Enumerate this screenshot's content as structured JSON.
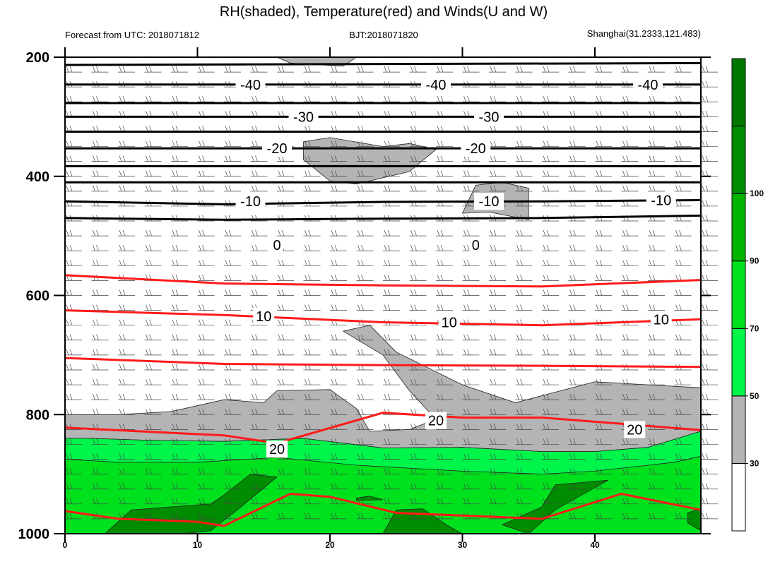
{
  "title": "RH(shaded), Temperature(red) and Winds(U and W)",
  "left_string": "Forecast from UTC: 2018071812",
  "center_string": "BJT:2018071820",
  "right_string": "Shanghai(31.2333,121.483)",
  "chart_data": {
    "type": "heatmap",
    "title": "RH(shaded), Temperature(red) and Winds(U and W)",
    "x_ticks": [
      "0",
      "10",
      "20",
      "30",
      "40"
    ],
    "y_ticks": [
      "200",
      "400",
      "600",
      "800",
      "1000"
    ],
    "xlim": [
      0,
      48
    ],
    "ylim": [
      1000,
      200
    ],
    "colorbar": {
      "levels": [
        "30",
        "50",
        "70",
        "90",
        "100"
      ],
      "colors": [
        "#ffffff",
        "#b4b4b4",
        "#00f54a",
        "#00e11e",
        "#00b400",
        "#008c00",
        "#007800"
      ]
    },
    "temperature_black": [
      {
        "p": 213,
        "values": [
          [
            0,
            213
          ],
          [
            48,
            210
          ]
        ]
      },
      {
        "p": 246,
        "values": [
          [
            0,
            246
          ],
          [
            48,
            246
          ]
        ]
      },
      {
        "p": 277,
        "values": [
          [
            0,
            277
          ],
          [
            48,
            277
          ]
        ]
      },
      {
        "p": 300,
        "values": [
          [
            0,
            300
          ],
          [
            48,
            300
          ]
        ]
      },
      {
        "p": 325,
        "values": [
          [
            0,
            325
          ],
          [
            48,
            325
          ]
        ]
      },
      {
        "p": 353,
        "values": [
          [
            0,
            353
          ],
          [
            48,
            353
          ]
        ]
      },
      {
        "p": 383,
        "values": [
          [
            0,
            383
          ],
          [
            48,
            383
          ]
        ]
      },
      {
        "p": 410,
        "values": [
          [
            0,
            410
          ],
          [
            48,
            410
          ]
        ]
      },
      {
        "p": 440,
        "values": [
          [
            0,
            442
          ],
          [
            12,
            447
          ],
          [
            24,
            443
          ],
          [
            36,
            442
          ],
          [
            48,
            440
          ]
        ]
      },
      {
        "p": 470,
        "values": [
          [
            0,
            470
          ],
          [
            12,
            473
          ],
          [
            24,
            471
          ],
          [
            36,
            470
          ],
          [
            48,
            466
          ]
        ]
      }
    ],
    "temperature_red": [
      {
        "p": 567,
        "values": [
          [
            0,
            566
          ],
          [
            12,
            580
          ],
          [
            24,
            583
          ],
          [
            36,
            585
          ],
          [
            48,
            574
          ]
        ]
      },
      {
        "p": 625,
        "values": [
          [
            0,
            625
          ],
          [
            12,
            633
          ],
          [
            24,
            645
          ],
          [
            36,
            650
          ],
          [
            48,
            640
          ]
        ]
      },
      {
        "p": 705,
        "values": [
          [
            0,
            705
          ],
          [
            12,
            715
          ],
          [
            24,
            717
          ],
          [
            36,
            718
          ],
          [
            48,
            720
          ]
        ]
      },
      {
        "p": 820,
        "values": [
          [
            0,
            822
          ],
          [
            12,
            835
          ],
          [
            16,
            848
          ],
          [
            24,
            797
          ],
          [
            30,
            805
          ],
          [
            36,
            805
          ],
          [
            48,
            826
          ]
        ]
      },
      {
        "p": 960,
        "values": [
          [
            0,
            962
          ],
          [
            4,
            975
          ],
          [
            10,
            980
          ],
          [
            12,
            987
          ],
          [
            17,
            933
          ],
          [
            20,
            938
          ],
          [
            25,
            965
          ],
          [
            36,
            975
          ],
          [
            42,
            933
          ],
          [
            48,
            960
          ]
        ]
      }
    ],
    "temperature_labels": [
      {
        "text": "-40",
        "x": 14,
        "p": 246
      },
      {
        "text": "-40",
        "x": 28,
        "p": 246
      },
      {
        "text": "-40",
        "x": 44,
        "p": 246
      },
      {
        "text": "-30",
        "x": 18,
        "p": 300
      },
      {
        "text": "-30",
        "x": 32,
        "p": 300
      },
      {
        "text": "-20",
        "x": 16,
        "p": 353
      },
      {
        "text": "-20",
        "x": 31,
        "p": 353
      },
      {
        "text": "-10",
        "x": 14,
        "p": 442
      },
      {
        "text": "-10",
        "x": 32,
        "p": 442
      },
      {
        "text": "-10",
        "x": 45,
        "p": 440
      },
      {
        "text": "0",
        "x": 16,
        "p": 515
      },
      {
        "text": "0",
        "x": 31,
        "p": 515
      },
      {
        "text": "10",
        "x": 15,
        "p": 635
      },
      {
        "text": "10",
        "x": 29,
        "p": 645
      },
      {
        "text": "10",
        "x": 45,
        "p": 640
      },
      {
        "text": "20",
        "x": 16,
        "p": 858
      },
      {
        "text": "20",
        "x": 28,
        "p": 810
      },
      {
        "text": "20",
        "x": 43,
        "p": 825
      }
    ],
    "rh_regions": [
      {
        "level": "30-50",
        "polygon": [
          [
            0,
            800
          ],
          [
            4,
            800
          ],
          [
            8,
            795
          ],
          [
            12,
            775
          ],
          [
            15,
            780
          ],
          [
            16,
            760
          ],
          [
            20,
            758
          ],
          [
            22,
            790
          ],
          [
            23,
            828
          ],
          [
            26,
            825
          ],
          [
            28,
            808
          ],
          [
            26,
            760
          ],
          [
            24,
            700
          ],
          [
            21,
            660
          ],
          [
            23,
            650
          ],
          [
            25,
            695
          ],
          [
            30,
            750
          ],
          [
            34,
            780
          ],
          [
            40,
            745
          ],
          [
            48,
            755
          ],
          [
            48,
            828
          ],
          [
            44,
            855
          ],
          [
            40,
            862
          ],
          [
            36,
            862
          ],
          [
            30,
            855
          ],
          [
            24,
            856
          ],
          [
            18,
            840
          ],
          [
            12,
            845
          ],
          [
            6,
            843
          ],
          [
            2,
            840
          ],
          [
            0,
            840
          ]
        ]
      },
      {
        "level": "30-50",
        "polygon": [
          [
            18,
            342
          ],
          [
            20,
            335
          ],
          [
            24,
            350
          ],
          [
            26,
            345
          ],
          [
            28,
            355
          ],
          [
            26,
            392
          ],
          [
            22,
            413
          ],
          [
            20,
            408
          ],
          [
            18,
            372
          ]
        ]
      },
      {
        "level": "30-50",
        "polygon": [
          [
            30,
            462
          ],
          [
            31,
            415
          ],
          [
            33,
            410
          ],
          [
            35,
            420
          ],
          [
            35,
            473
          ],
          [
            32,
            460
          ]
        ]
      },
      {
        "level": "30-50",
        "polygon": [
          [
            16,
            200
          ],
          [
            22,
            200
          ],
          [
            21,
            215
          ],
          [
            17,
            210
          ]
        ]
      },
      {
        "level": "50-70",
        "polygon": [
          [
            0,
            840
          ],
          [
            2,
            840
          ],
          [
            6,
            843
          ],
          [
            12,
            845
          ],
          [
            18,
            840
          ],
          [
            24,
            856
          ],
          [
            30,
            855
          ],
          [
            36,
            862
          ],
          [
            40,
            862
          ],
          [
            44,
            855
          ],
          [
            48,
            828
          ],
          [
            48,
            1000
          ],
          [
            0,
            1000
          ]
        ]
      },
      {
        "level": "70-90",
        "polygon": [
          [
            0,
            875
          ],
          [
            4,
            880
          ],
          [
            10,
            880
          ],
          [
            16,
            872
          ],
          [
            22,
            885
          ],
          [
            30,
            895
          ],
          [
            36,
            900
          ],
          [
            40,
            895
          ],
          [
            46,
            880
          ],
          [
            48,
            870
          ],
          [
            48,
            1000
          ],
          [
            0,
            1000
          ]
        ]
      },
      {
        "level": "90-100",
        "polygon": [
          [
            3,
            1000
          ],
          [
            5,
            960
          ],
          [
            8,
            955
          ],
          [
            11,
            950
          ],
          [
            12,
            935
          ],
          [
            14,
            900
          ],
          [
            16,
            905
          ],
          [
            13,
            960
          ],
          [
            11,
            995
          ],
          [
            9,
            1000
          ]
        ]
      },
      {
        "level": "90-100",
        "polygon": [
          [
            24,
            1000
          ],
          [
            25,
            960
          ],
          [
            27,
            958
          ],
          [
            29,
            988
          ],
          [
            30,
            1000
          ]
        ]
      },
      {
        "level": "90-100",
        "polygon": [
          [
            33,
            985
          ],
          [
            36,
            955
          ],
          [
            37,
            918
          ],
          [
            41,
            910
          ],
          [
            39,
            935
          ],
          [
            37,
            960
          ],
          [
            35,
            1000
          ]
        ]
      },
      {
        "level": "90-100",
        "polygon": [
          [
            47,
            965
          ],
          [
            48,
            958
          ],
          [
            48,
            995
          ],
          [
            47,
            982
          ]
        ]
      },
      {
        "level": "90-100",
        "polygon": [
          [
            22,
            940
          ],
          [
            23,
            937
          ],
          [
            24,
            943
          ],
          [
            22,
            944
          ]
        ]
      }
    ],
    "grid": true,
    "legend": "right"
  }
}
